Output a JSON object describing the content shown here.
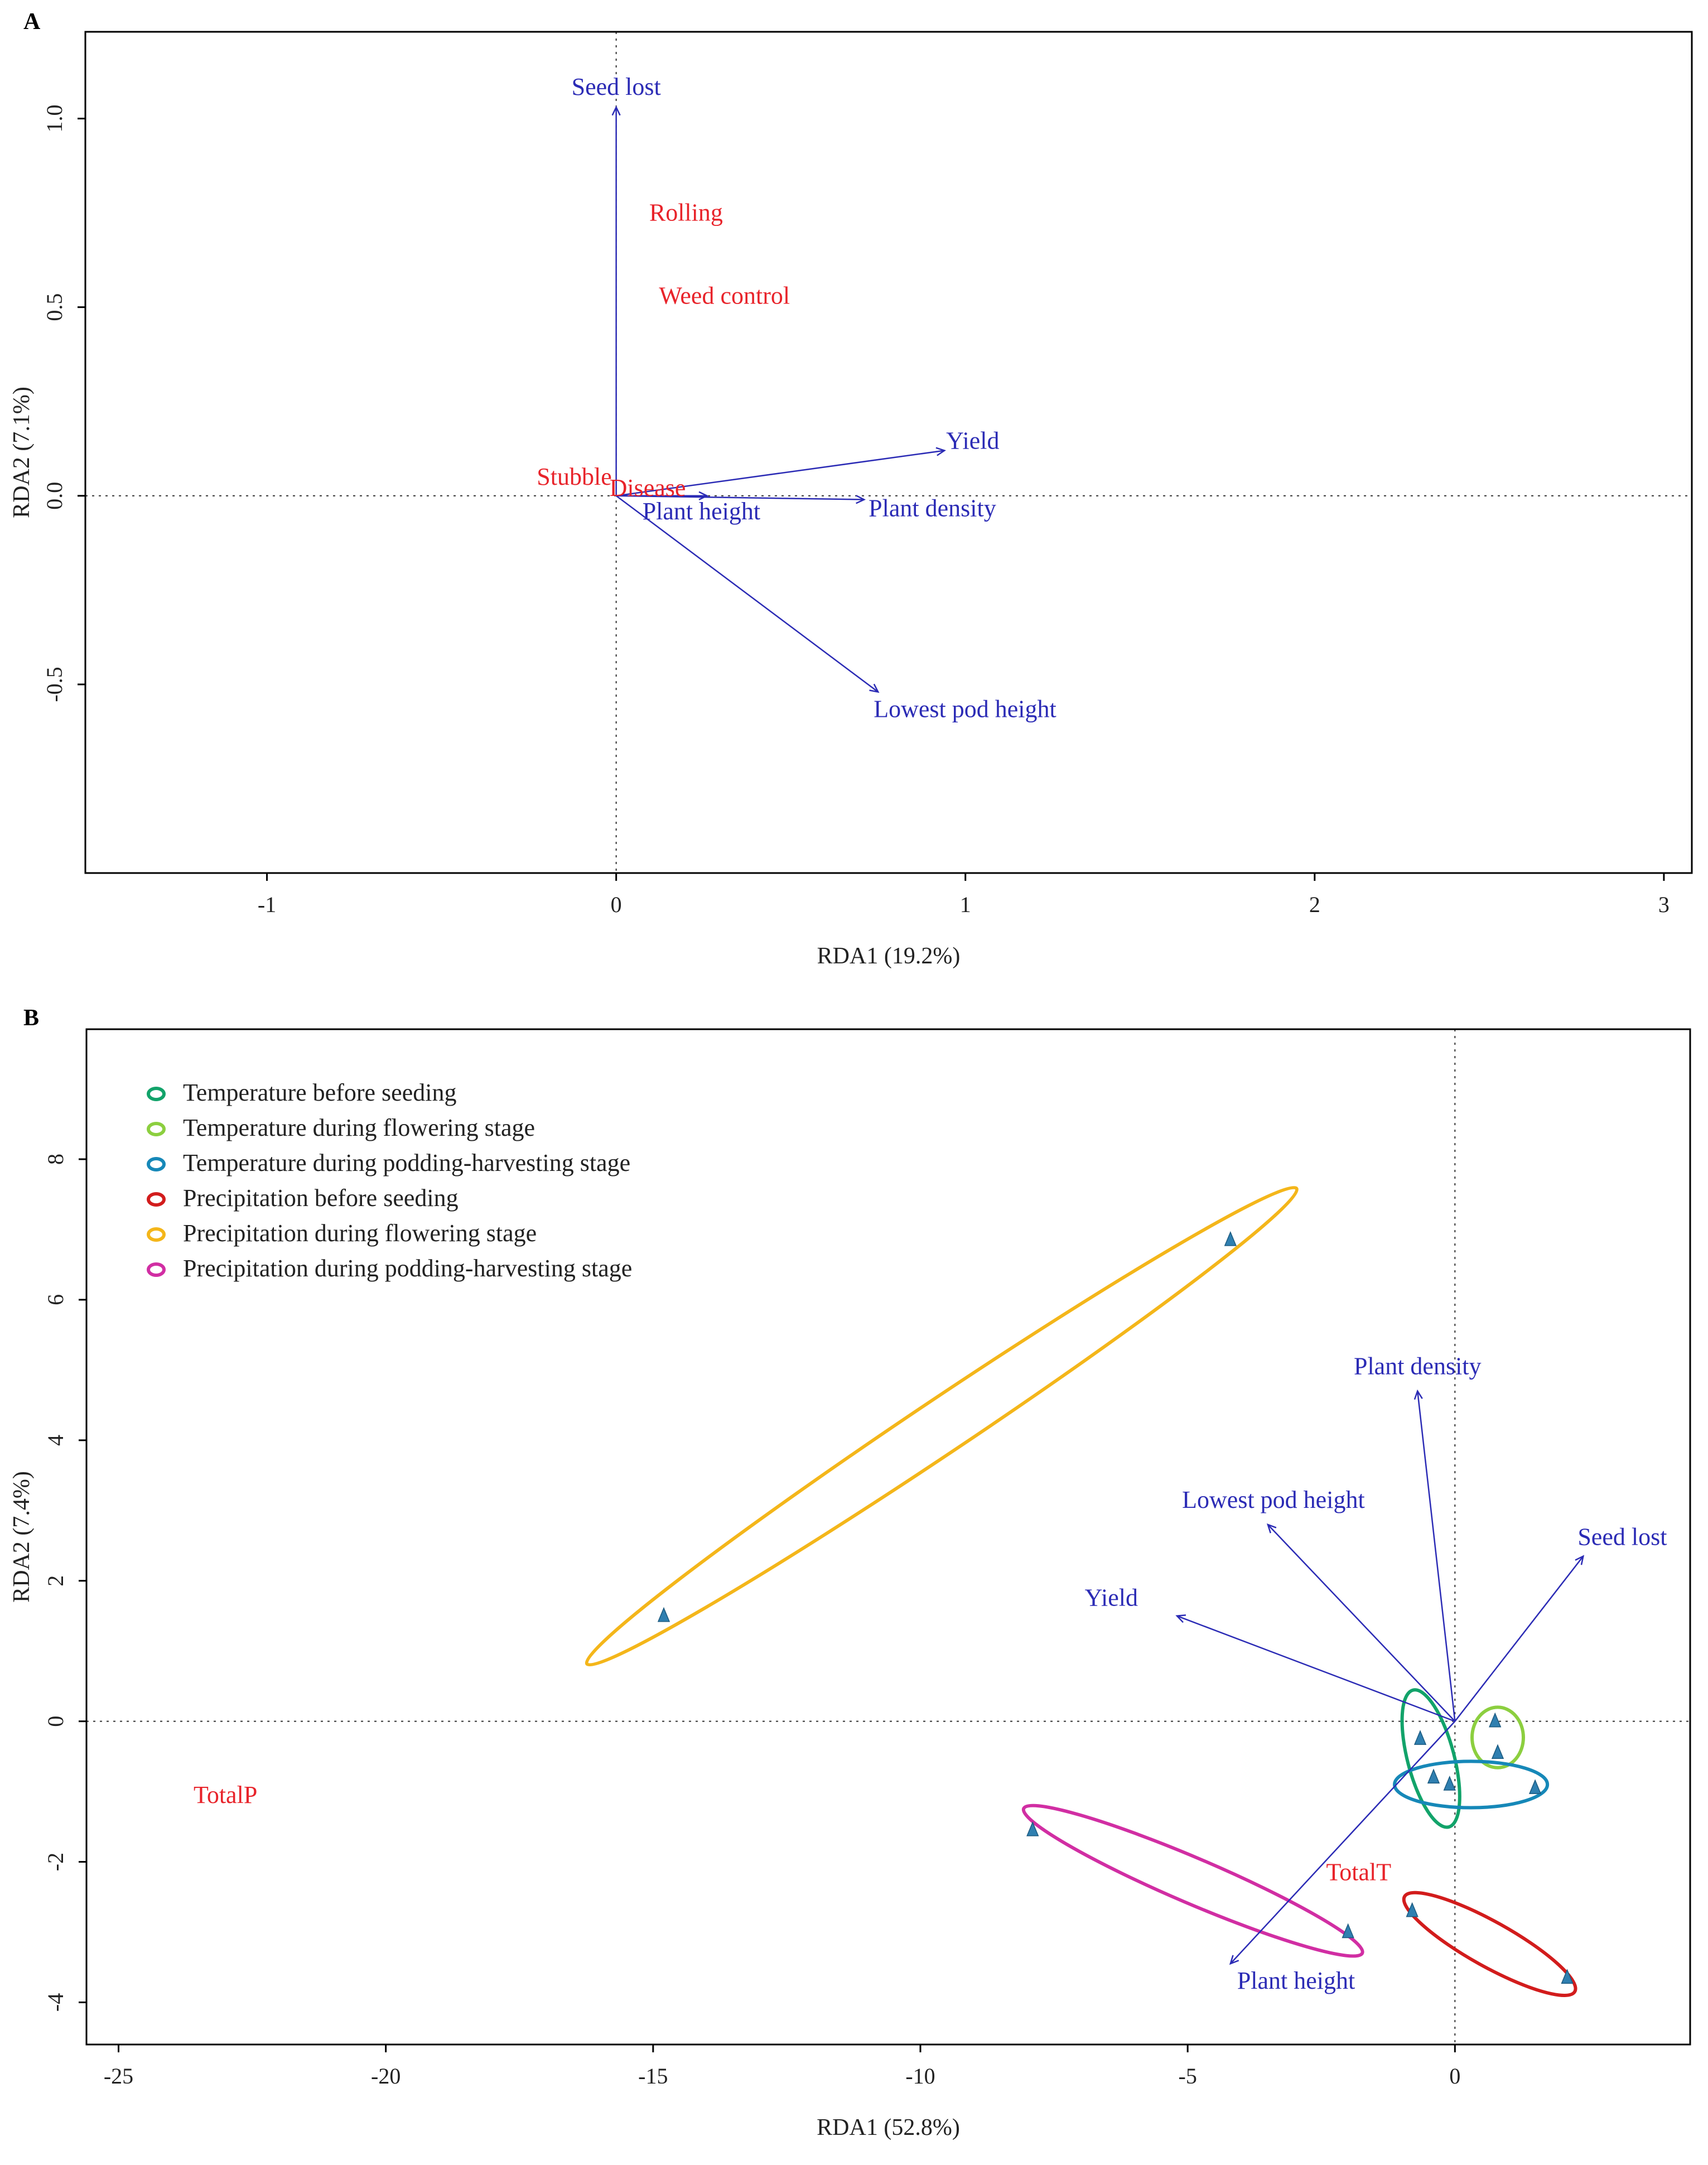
{
  "chart_data": [
    {
      "panel_label": "A",
      "type": "scatter",
      "subtype": "rda-biplot",
      "xlabel": "RDA1 (19.2%)",
      "ylabel": "RDA2 (7.1%)",
      "xlim": [
        -1.52,
        3.08
      ],
      "ylim": [
        -1.0,
        1.23
      ],
      "xticks": [
        -1,
        0,
        1,
        2,
        3
      ],
      "yticks": [
        -0.5,
        0.0,
        0.5,
        1.0
      ],
      "xtick_labels": [
        "-1",
        "0",
        "1",
        "2",
        "3"
      ],
      "ytick_labels": [
        "-0.5",
        "0.0",
        "0.5",
        "1.0"
      ],
      "reference_lines": {
        "x": 0,
        "y": 0
      },
      "arrows": [
        {
          "label": "Seed lost",
          "x": 0.0,
          "y": 1.03,
          "color": "#2b2bb5"
        },
        {
          "label": "Yield",
          "x": 0.94,
          "y": 0.12,
          "color": "#2b2bb5"
        },
        {
          "label": "Plant density",
          "x": 0.71,
          "y": -0.01,
          "color": "#2b2bb5"
        },
        {
          "label": "Plant height",
          "x": 0.26,
          "y": 0.0,
          "color": "#2b2bb5"
        },
        {
          "label": "Lowest pod height",
          "x": 0.75,
          "y": -0.52,
          "color": "#2b2bb5"
        }
      ],
      "factor_labels": [
        {
          "label": "Rolling",
          "x": 0.2,
          "y": 0.75,
          "color": "#e8232a"
        },
        {
          "label": "Weed control",
          "x": 0.31,
          "y": 0.53,
          "color": "#e8232a"
        },
        {
          "label": "Stubble",
          "x": -0.12,
          "y": 0.05,
          "color": "#e8232a"
        },
        {
          "label": "Disease",
          "x": 0.09,
          "y": 0.02,
          "color": "#e8232a"
        }
      ]
    },
    {
      "panel_label": "B",
      "type": "scatter",
      "subtype": "rda-biplot",
      "xlabel": "RDA1 (52.8%)",
      "ylabel": "RDA2 (7.4%)",
      "xlim": [
        -25.6,
        4.4
      ],
      "ylim": [
        -4.6,
        9.85
      ],
      "xticks": [
        -25,
        -20,
        -15,
        -10,
        -5,
        0
      ],
      "yticks": [
        -4,
        -2,
        0,
        2,
        4,
        6,
        8
      ],
      "xtick_labels": [
        "-25",
        "-20",
        "-15",
        "-10",
        "-5",
        "0"
      ],
      "ytick_labels": [
        "-4",
        "-2",
        "0",
        "2",
        "4",
        "6",
        "8"
      ],
      "reference_lines": {
        "x": 0,
        "y": 0
      },
      "legend": {
        "position": "top-left",
        "entries": [
          {
            "label": "Temperature before seeding",
            "color": "#12a36a"
          },
          {
            "label": "Temperature during flowering stage",
            "color": "#8ccf3f"
          },
          {
            "label": "Temperature during podding-harvesting stage",
            "color": "#1688b8"
          },
          {
            "label": "Precipitation before seeding",
            "color": "#d21c1c"
          },
          {
            "label": "Precipitation during flowering stage",
            "color": "#f4b61a"
          },
          {
            "label": "Precipitation during podding-harvesting stage",
            "color": "#d12ea3"
          }
        ]
      },
      "arrows": [
        {
          "label": "Plant density",
          "x": -0.7,
          "y": 4.7,
          "color": "#2b2bb5"
        },
        {
          "label": "Lowest pod height",
          "x": -3.5,
          "y": 2.8,
          "color": "#2b2bb5"
        },
        {
          "label": "Seed lost",
          "x": 2.4,
          "y": 2.35,
          "color": "#2b2bb5"
        },
        {
          "label": "Yield",
          "x": -5.2,
          "y": 1.5,
          "color": "#2b2bb5"
        },
        {
          "label": "Plant height",
          "x": -4.2,
          "y": -3.45,
          "color": "#2b2bb5"
        }
      ],
      "factor_labels": [
        {
          "label": "TotalP",
          "x": -23.0,
          "y": -1.05,
          "color": "#e8232a"
        },
        {
          "label": "TotalT",
          "x": -1.8,
          "y": -2.15,
          "color": "#e8232a"
        }
      ],
      "points": [
        {
          "x": -4.2,
          "y": 6.85,
          "group": 4
        },
        {
          "x": -14.8,
          "y": 1.5,
          "group": 4
        },
        {
          "x": -7.9,
          "y": -1.55,
          "group": 5
        },
        {
          "x": -2.0,
          "y": -3.0,
          "group": 5
        },
        {
          "x": -0.8,
          "y": -2.7,
          "group": 3
        },
        {
          "x": 2.1,
          "y": -3.65,
          "group": 3
        },
        {
          "x": -0.65,
          "y": -0.25,
          "group": 0
        },
        {
          "x": -0.4,
          "y": -0.8,
          "group": 0
        },
        {
          "x": -0.1,
          "y": -0.9,
          "group": 0
        },
        {
          "x": 0.75,
          "y": 0.0,
          "group": 1
        },
        {
          "x": 0.8,
          "y": -0.45,
          "group": 1
        },
        {
          "x": 1.5,
          "y": -0.95,
          "group": 2
        }
      ],
      "ellipses": [
        {
          "group": 4,
          "cx": -9.6,
          "cy": 4.2,
          "rx": 7.45,
          "ry": 0.4,
          "angle_deg": 27
        },
        {
          "group": 5,
          "cx": -4.9,
          "cy": -2.27,
          "rx": 3.33,
          "ry": 0.33,
          "angle_deg": -18
        },
        {
          "group": 3,
          "cx": 0.65,
          "cy": -3.17,
          "rx": 1.73,
          "ry": 0.33,
          "angle_deg": -23
        },
        {
          "group": 0,
          "cx": -0.45,
          "cy": -0.53,
          "rx": 1.03,
          "ry": 0.42,
          "angle_deg": -71
        },
        {
          "group": 1,
          "cx": 0.8,
          "cy": -0.23,
          "rx": 0.48,
          "ry": 0.43,
          "angle_deg": 0
        },
        {
          "group": 2,
          "cx": 0.3,
          "cy": -0.9,
          "rx": 1.43,
          "ry": 0.33,
          "angle_deg": 0
        }
      ]
    }
  ]
}
